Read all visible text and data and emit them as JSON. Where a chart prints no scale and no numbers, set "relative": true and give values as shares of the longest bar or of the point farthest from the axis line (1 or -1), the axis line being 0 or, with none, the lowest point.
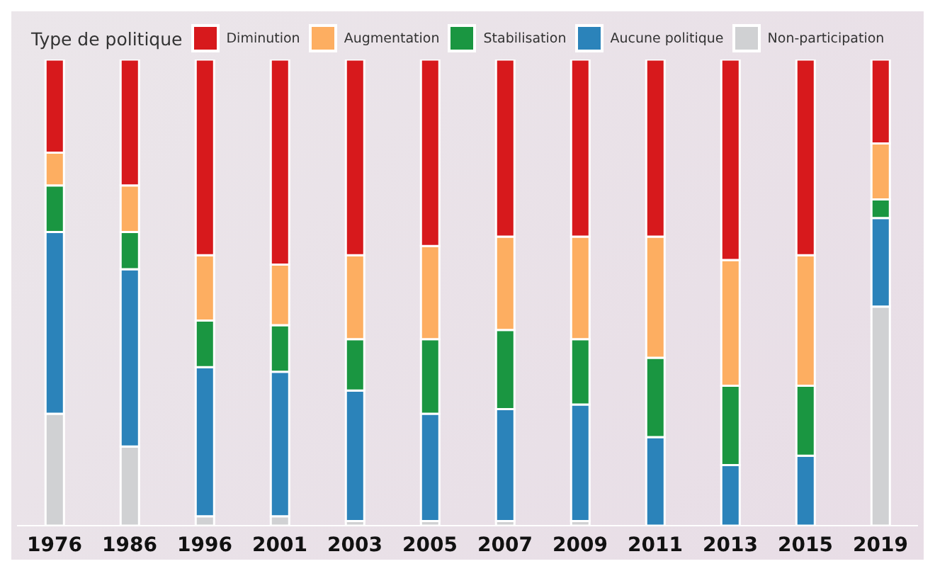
{
  "chart_data": {
    "type": "bar",
    "stacked": true,
    "relative": true,
    "legend": "top",
    "legend_title": "Type de politique",
    "categories": [
      "1976",
      "1986",
      "1996",
      "2001",
      "2003",
      "2005",
      "2007",
      "2009",
      "2011",
      "2013",
      "2015",
      "2019"
    ],
    "series": [
      {
        "name": "Non-participation",
        "color": "#d0d1d3",
        "values": [
          0.24,
          0.17,
          0.02,
          0.02,
          0.01,
          0.01,
          0.01,
          0.01,
          0,
          0,
          0,
          0.47
        ]
      },
      {
        "name": "Aucune politique",
        "color": "#2b83ba",
        "values": [
          0.39,
          0.38,
          0.32,
          0.31,
          0.28,
          0.23,
          0.24,
          0.25,
          0.19,
          0.13,
          0.15,
          0.19
        ]
      },
      {
        "name": "Stabilisation",
        "color": "#1a9641",
        "values": [
          0.1,
          0.08,
          0.1,
          0.1,
          0.11,
          0.16,
          0.17,
          0.14,
          0.17,
          0.17,
          0.15,
          0.04
        ]
      },
      {
        "name": "Augmentation",
        "color": "#fdae61",
        "values": [
          0.07,
          0.1,
          0.14,
          0.13,
          0.18,
          0.2,
          0.2,
          0.22,
          0.26,
          0.27,
          0.28,
          0.12
        ]
      },
      {
        "name": "Diminution",
        "color": "#d7191c",
        "values": [
          0.2,
          0.27,
          0.42,
          0.44,
          0.42,
          0.4,
          0.38,
          0.38,
          0.38,
          0.43,
          0.42,
          0.18
        ]
      }
    ]
  }
}
